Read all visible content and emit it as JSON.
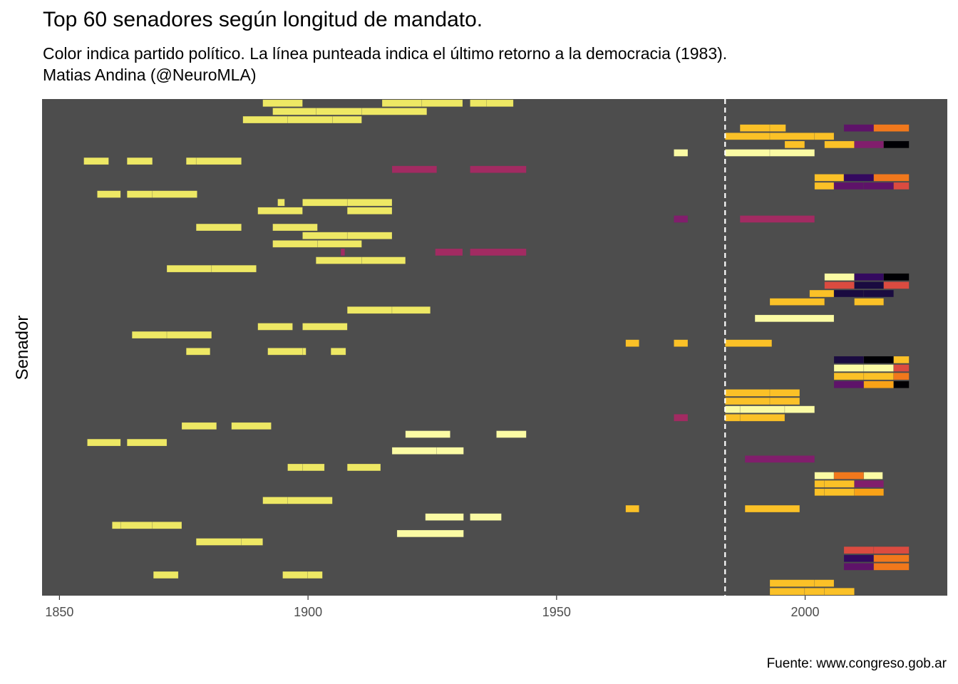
{
  "chart_data": {
    "type": "timeline",
    "title": "Top 60 senadores según longitud de mandato.",
    "subtitle": "Color indica partido político. La línea punteada indica el último retorno a la democracia (1983).",
    "author": "Matias Andina (@NeuroMLA)",
    "ylabel": "Senador",
    "caption": "Fuente: www.congreso.gob.ar",
    "xlim": [
      1846.5,
      2028.6
    ],
    "x_ticks": [
      1850,
      1900,
      1950,
      2000
    ],
    "reference_line": {
      "x": 1983.9
    },
    "background": "#4d4d4d",
    "row_count": 60,
    "palette": {
      "amarillo": "#eee864",
      "amarillo-claro": "#fbfba4",
      "oro": "#fbc127",
      "naranja": "#f9a217",
      "naranja-oscuro": "#f1781c",
      "rojo": "#db4b40",
      "magenta": "#a22b62",
      "violeta": "#811e6c",
      "morado": "#5e1369",
      "indigo": "#34095f",
      "noche": "#1a0b40",
      "negro": "#000004"
    },
    "segments": [
      {
        "row": 1,
        "start": 1890.9,
        "end": 1898.9,
        "color": "#eee864"
      },
      {
        "row": 1,
        "start": 1914.9,
        "end": 1922.9,
        "color": "#eee864"
      },
      {
        "row": 1,
        "start": 1922.9,
        "end": 1931.1,
        "color": "#eee864"
      },
      {
        "row": 1,
        "start": 1932.6,
        "end": 1935.9,
        "color": "#eee864"
      },
      {
        "row": 1,
        "start": 1935.9,
        "end": 1941.3,
        "color": "#eee864"
      },
      {
        "row": 2,
        "start": 1892.9,
        "end": 1901.6,
        "color": "#eee864"
      },
      {
        "row": 2,
        "start": 1901.6,
        "end": 1910.8,
        "color": "#eee864"
      },
      {
        "row": 2,
        "start": 1910.8,
        "end": 1923.9,
        "color": "#eee864"
      },
      {
        "row": 3,
        "start": 1886.9,
        "end": 1895.9,
        "color": "#eee864"
      },
      {
        "row": 3,
        "start": 1895.9,
        "end": 1904.9,
        "color": "#eee864"
      },
      {
        "row": 3,
        "start": 1904.9,
        "end": 1910.8,
        "color": "#eee864"
      },
      {
        "row": 4,
        "start": 1986.9,
        "end": 1992.9,
        "color": "#fbc127"
      },
      {
        "row": 4,
        "start": 1992.9,
        "end": 1996.1,
        "color": "#fbc127"
      },
      {
        "row": 4,
        "start": 2007.8,
        "end": 2013.8,
        "color": "#5e1369"
      },
      {
        "row": 4,
        "start": 2013.8,
        "end": 2020.9,
        "color": "#f1781c"
      },
      {
        "row": 5,
        "start": 1983.9,
        "end": 1992.9,
        "color": "#fbc127"
      },
      {
        "row": 5,
        "start": 1992.9,
        "end": 2001.9,
        "color": "#fbc127"
      },
      {
        "row": 5,
        "start": 2001.9,
        "end": 2005.8,
        "color": "#fbc127"
      },
      {
        "row": 6,
        "start": 1995.9,
        "end": 1999.9,
        "color": "#fbc127"
      },
      {
        "row": 6,
        "start": 2003.9,
        "end": 2009.9,
        "color": "#fbc127"
      },
      {
        "row": 6,
        "start": 2009.9,
        "end": 2015.8,
        "color": "#811e6c"
      },
      {
        "row": 6,
        "start": 2015.8,
        "end": 2020.9,
        "color": "#000004"
      },
      {
        "row": 7,
        "start": 1973.6,
        "end": 1976.4,
        "color": "#fbfba4"
      },
      {
        "row": 7,
        "start": 1983.9,
        "end": 1992.9,
        "color": "#fbfba4"
      },
      {
        "row": 7,
        "start": 1992.9,
        "end": 2001.9,
        "color": "#fbfba4"
      },
      {
        "row": 8,
        "start": 1854.9,
        "end": 1859.9,
        "color": "#eee864"
      },
      {
        "row": 8,
        "start": 1863.6,
        "end": 1868.7,
        "color": "#eee864"
      },
      {
        "row": 8,
        "start": 1875.5,
        "end": 1877.5,
        "color": "#eee864"
      },
      {
        "row": 8,
        "start": 1877.5,
        "end": 1886.6,
        "color": "#eee864"
      },
      {
        "row": 9,
        "start": 1916.9,
        "end": 1925.9,
        "color": "#a22b62"
      },
      {
        "row": 9,
        "start": 1932.6,
        "end": 1943.9,
        "color": "#a22b62"
      },
      {
        "row": 10,
        "start": 2001.9,
        "end": 2007.8,
        "color": "#fbc127"
      },
      {
        "row": 10,
        "start": 2007.8,
        "end": 2013.8,
        "color": "#34095f"
      },
      {
        "row": 10,
        "start": 2013.8,
        "end": 2020.9,
        "color": "#f1781c"
      },
      {
        "row": 11,
        "start": 2001.9,
        "end": 2005.8,
        "color": "#fbc127"
      },
      {
        "row": 11,
        "start": 2005.8,
        "end": 2011.8,
        "color": "#5e1369"
      },
      {
        "row": 11,
        "start": 2011.8,
        "end": 2017.8,
        "color": "#5e1369"
      },
      {
        "row": 11,
        "start": 2017.8,
        "end": 2020.9,
        "color": "#db4b40"
      },
      {
        "row": 12,
        "start": 1857.6,
        "end": 1862.3,
        "color": "#eee864"
      },
      {
        "row": 12,
        "start": 1863.6,
        "end": 1868.7,
        "color": "#eee864"
      },
      {
        "row": 12,
        "start": 1868.7,
        "end": 1877.7,
        "color": "#eee864"
      },
      {
        "row": 13,
        "start": 1893.9,
        "end": 1895.3,
        "color": "#eee864"
      },
      {
        "row": 13,
        "start": 1898.9,
        "end": 1907.9,
        "color": "#eee864"
      },
      {
        "row": 13,
        "start": 1907.9,
        "end": 1916.9,
        "color": "#eee864"
      },
      {
        "row": 14,
        "start": 1889.9,
        "end": 1898.9,
        "color": "#eee864"
      },
      {
        "row": 14,
        "start": 1907.9,
        "end": 1916.9,
        "color": "#eee864"
      },
      {
        "row": 15,
        "start": 1973.6,
        "end": 1976.4,
        "color": "#811e6c"
      },
      {
        "row": 15,
        "start": 1986.9,
        "end": 2001.9,
        "color": "#a22b62"
      },
      {
        "row": 16,
        "start": 1877.5,
        "end": 1886.6,
        "color": "#eee864"
      },
      {
        "row": 16,
        "start": 1892.9,
        "end": 1901.9,
        "color": "#eee864"
      },
      {
        "row": 17,
        "start": 1898.9,
        "end": 1907.9,
        "color": "#eee864"
      },
      {
        "row": 17,
        "start": 1907.9,
        "end": 1916.9,
        "color": "#eee864"
      },
      {
        "row": 18,
        "start": 1892.9,
        "end": 1901.9,
        "color": "#eee864"
      },
      {
        "row": 18,
        "start": 1901.9,
        "end": 1910.8,
        "color": "#eee864"
      },
      {
        "row": 19,
        "start": 1906.6,
        "end": 1907.4,
        "color": "#a22b62"
      },
      {
        "row": 19,
        "start": 1925.6,
        "end": 1931.1,
        "color": "#a22b62"
      },
      {
        "row": 19,
        "start": 1932.6,
        "end": 1943.9,
        "color": "#a22b62"
      },
      {
        "row": 20,
        "start": 1901.6,
        "end": 1910.8,
        "color": "#eee864"
      },
      {
        "row": 20,
        "start": 1910.8,
        "end": 1919.6,
        "color": "#eee864"
      },
      {
        "row": 21,
        "start": 1871.6,
        "end": 1880.6,
        "color": "#eee864"
      },
      {
        "row": 21,
        "start": 1880.6,
        "end": 1889.6,
        "color": "#eee864"
      },
      {
        "row": 22,
        "start": 2003.9,
        "end": 2009.9,
        "color": "#fbfba4"
      },
      {
        "row": 22,
        "start": 2009.9,
        "end": 2015.8,
        "color": "#34095f"
      },
      {
        "row": 22,
        "start": 2015.8,
        "end": 2020.9,
        "color": "#000004"
      },
      {
        "row": 23,
        "start": 2003.9,
        "end": 2009.9,
        "color": "#db4b40"
      },
      {
        "row": 23,
        "start": 2009.9,
        "end": 2015.8,
        "color": "#1a0b40"
      },
      {
        "row": 23,
        "start": 2015.8,
        "end": 2020.9,
        "color": "#db4b40"
      },
      {
        "row": 24,
        "start": 2000.9,
        "end": 2005.8,
        "color": "#fbc127"
      },
      {
        "row": 24,
        "start": 2005.8,
        "end": 2011.8,
        "color": "#1a0b40"
      },
      {
        "row": 24,
        "start": 2011.8,
        "end": 2017.8,
        "color": "#1a0b40"
      },
      {
        "row": 25,
        "start": 1992.9,
        "end": 2003.9,
        "color": "#fbc127"
      },
      {
        "row": 25,
        "start": 2009.9,
        "end": 2015.8,
        "color": "#fbc127"
      },
      {
        "row": 26,
        "start": 1907.9,
        "end": 1916.9,
        "color": "#eee864"
      },
      {
        "row": 26,
        "start": 1916.9,
        "end": 1924.6,
        "color": "#eee864"
      },
      {
        "row": 27,
        "start": 1989.9,
        "end": 2005.8,
        "color": "#fbfba4"
      },
      {
        "row": 28,
        "start": 1889.9,
        "end": 1896.9,
        "color": "#eee864"
      },
      {
        "row": 28,
        "start": 1898.9,
        "end": 1907.9,
        "color": "#eee864"
      },
      {
        "row": 29,
        "start": 1864.6,
        "end": 1871.6,
        "color": "#eee864"
      },
      {
        "row": 29,
        "start": 1871.6,
        "end": 1880.6,
        "color": "#eee864"
      },
      {
        "row": 30,
        "start": 1963.9,
        "end": 1966.6,
        "color": "#fbc127"
      },
      {
        "row": 30,
        "start": 1973.6,
        "end": 1976.4,
        "color": "#fbc127"
      },
      {
        "row": 30,
        "start": 1983.9,
        "end": 1993.3,
        "color": "#fbc127"
      },
      {
        "row": 31,
        "start": 1875.5,
        "end": 1880.3,
        "color": "#eee864"
      },
      {
        "row": 31,
        "start": 1891.9,
        "end": 1898.9,
        "color": "#eee864"
      },
      {
        "row": 31,
        "start": 1898.9,
        "end": 1899.6,
        "color": "#eee864"
      },
      {
        "row": 31,
        "start": 1904.6,
        "end": 1907.6,
        "color": "#eee864"
      },
      {
        "row": 32,
        "start": 2005.8,
        "end": 2011.8,
        "color": "#1a0b40"
      },
      {
        "row": 32,
        "start": 2011.8,
        "end": 2017.8,
        "color": "#000004"
      },
      {
        "row": 32,
        "start": 2017.8,
        "end": 2020.9,
        "color": "#fbc127"
      },
      {
        "row": 33,
        "start": 2005.8,
        "end": 2011.8,
        "color": "#fbfba4"
      },
      {
        "row": 33,
        "start": 2011.8,
        "end": 2017.8,
        "color": "#fbfba4"
      },
      {
        "row": 33,
        "start": 2017.8,
        "end": 2020.9,
        "color": "#db4b40"
      },
      {
        "row": 34,
        "start": 2005.8,
        "end": 2011.8,
        "color": "#fbc127"
      },
      {
        "row": 34,
        "start": 2011.8,
        "end": 2017.8,
        "color": "#fbc127"
      },
      {
        "row": 34,
        "start": 2017.8,
        "end": 2020.9,
        "color": "#f1781c"
      },
      {
        "row": 35,
        "start": 2005.8,
        "end": 2011.8,
        "color": "#5e1369"
      },
      {
        "row": 35,
        "start": 2011.8,
        "end": 2017.8,
        "color": "#f9a217"
      },
      {
        "row": 35,
        "start": 2017.8,
        "end": 2020.9,
        "color": "#000004"
      },
      {
        "row": 36,
        "start": 1983.9,
        "end": 1992.9,
        "color": "#fbc127"
      },
      {
        "row": 36,
        "start": 1992.9,
        "end": 1998.9,
        "color": "#fbc127"
      },
      {
        "row": 37,
        "start": 1983.9,
        "end": 1992.9,
        "color": "#fbc127"
      },
      {
        "row": 37,
        "start": 1992.9,
        "end": 1998.9,
        "color": "#fbc127"
      },
      {
        "row": 38,
        "start": 1983.9,
        "end": 1986.9,
        "color": "#fbfba4"
      },
      {
        "row": 38,
        "start": 1986.9,
        "end": 1995.9,
        "color": "#fbfba4"
      },
      {
        "row": 38,
        "start": 1995.9,
        "end": 2001.9,
        "color": "#fbfba4"
      },
      {
        "row": 39,
        "start": 1973.6,
        "end": 1976.4,
        "color": "#a22b62"
      },
      {
        "row": 39,
        "start": 1983.9,
        "end": 1986.9,
        "color": "#fbc127"
      },
      {
        "row": 39,
        "start": 1986.9,
        "end": 1995.9,
        "color": "#fbc127"
      },
      {
        "row": 40,
        "start": 1874.6,
        "end": 1881.6,
        "color": "#eee864"
      },
      {
        "row": 40,
        "start": 1884.6,
        "end": 1892.6,
        "color": "#eee864"
      },
      {
        "row": 41,
        "start": 1919.6,
        "end": 1928.6,
        "color": "#fbfba4"
      },
      {
        "row": 41,
        "start": 1937.9,
        "end": 1943.9,
        "color": "#fbfba4"
      },
      {
        "row": 42,
        "start": 1855.6,
        "end": 1862.3,
        "color": "#eee864"
      },
      {
        "row": 42,
        "start": 1863.6,
        "end": 1871.6,
        "color": "#eee864"
      },
      {
        "row": 43,
        "start": 1916.9,
        "end": 1925.9,
        "color": "#fbfba4"
      },
      {
        "row": 43,
        "start": 1925.9,
        "end": 1931.3,
        "color": "#fbfba4"
      },
      {
        "row": 44,
        "start": 1987.9,
        "end": 2001.9,
        "color": "#811e6c"
      },
      {
        "row": 45,
        "start": 1895.9,
        "end": 1898.9,
        "color": "#eee864"
      },
      {
        "row": 45,
        "start": 1898.9,
        "end": 1903.3,
        "color": "#eee864"
      },
      {
        "row": 45,
        "start": 1907.9,
        "end": 1914.6,
        "color": "#eee864"
      },
      {
        "row": 46,
        "start": 2001.9,
        "end": 2005.8,
        "color": "#fbfba4"
      },
      {
        "row": 46,
        "start": 2005.8,
        "end": 2011.8,
        "color": "#f1781c"
      },
      {
        "row": 46,
        "start": 2011.8,
        "end": 2015.6,
        "color": "#fbfba4"
      },
      {
        "row": 47,
        "start": 2001.9,
        "end": 2003.9,
        "color": "#fbc127"
      },
      {
        "row": 47,
        "start": 2003.9,
        "end": 2009.9,
        "color": "#fbc127"
      },
      {
        "row": 47,
        "start": 2009.9,
        "end": 2015.8,
        "color": "#811e6c"
      },
      {
        "row": 48,
        "start": 2001.9,
        "end": 2003.9,
        "color": "#fbc127"
      },
      {
        "row": 48,
        "start": 2003.9,
        "end": 2009.9,
        "color": "#fbc127"
      },
      {
        "row": 48,
        "start": 2009.9,
        "end": 2015.8,
        "color": "#f9a217"
      },
      {
        "row": 49,
        "start": 1890.9,
        "end": 1895.9,
        "color": "#eee864"
      },
      {
        "row": 49,
        "start": 1895.9,
        "end": 1904.9,
        "color": "#eee864"
      },
      {
        "row": 50,
        "start": 1963.9,
        "end": 1966.6,
        "color": "#fbc127"
      },
      {
        "row": 50,
        "start": 1987.9,
        "end": 1998.9,
        "color": "#fbc127"
      },
      {
        "row": 51,
        "start": 1923.6,
        "end": 1931.3,
        "color": "#fbfba4"
      },
      {
        "row": 51,
        "start": 1932.6,
        "end": 1938.9,
        "color": "#fbfba4"
      },
      {
        "row": 52,
        "start": 1860.6,
        "end": 1862.3,
        "color": "#eee864"
      },
      {
        "row": 52,
        "start": 1862.3,
        "end": 1868.7,
        "color": "#eee864"
      },
      {
        "row": 52,
        "start": 1868.7,
        "end": 1874.6,
        "color": "#eee864"
      },
      {
        "row": 53,
        "start": 1917.9,
        "end": 1931.3,
        "color": "#fbfba4"
      },
      {
        "row": 54,
        "start": 1877.5,
        "end": 1886.6,
        "color": "#eee864"
      },
      {
        "row": 54,
        "start": 1886.6,
        "end": 1890.9,
        "color": "#eee864"
      },
      {
        "row": 55,
        "start": 2007.8,
        "end": 2013.8,
        "color": "#db4b40"
      },
      {
        "row": 55,
        "start": 2013.8,
        "end": 2020.9,
        "color": "#db4b40"
      },
      {
        "row": 56,
        "start": 2007.8,
        "end": 2013.8,
        "color": "#34095f"
      },
      {
        "row": 56,
        "start": 2013.8,
        "end": 2020.9,
        "color": "#f1781c"
      },
      {
        "row": 57,
        "start": 2007.8,
        "end": 2013.8,
        "color": "#5e1369"
      },
      {
        "row": 57,
        "start": 2013.8,
        "end": 2020.9,
        "color": "#f1781c"
      },
      {
        "row": 58,
        "start": 1868.9,
        "end": 1873.9,
        "color": "#eee864"
      },
      {
        "row": 58,
        "start": 1894.9,
        "end": 1899.9,
        "color": "#eee864"
      },
      {
        "row": 58,
        "start": 1899.9,
        "end": 1902.9,
        "color": "#eee864"
      },
      {
        "row": 59,
        "start": 1992.9,
        "end": 2001.9,
        "color": "#fbc127"
      },
      {
        "row": 59,
        "start": 2001.9,
        "end": 2005.8,
        "color": "#fbc127"
      },
      {
        "row": 60,
        "start": 1992.9,
        "end": 1999.9,
        "color": "#fbc127"
      },
      {
        "row": 60,
        "start": 1999.9,
        "end": 2003.9,
        "color": "#fbc127"
      },
      {
        "row": 60,
        "start": 2003.9,
        "end": 2009.9,
        "color": "#fbc127"
      }
    ]
  }
}
